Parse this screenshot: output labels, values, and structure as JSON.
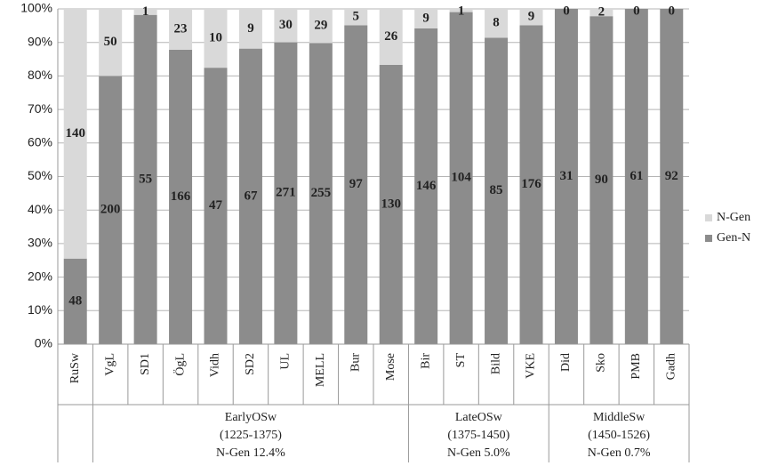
{
  "chart_data": {
    "type": "percent_stacked_bar",
    "categories": [
      "RuSw",
      "VgL",
      "SD1",
      "ÖgL",
      "Vidh",
      "SD2",
      "UL",
      "MELL",
      "Bur",
      "Mose",
      "Bir",
      "ST",
      "Bild",
      "VKE",
      "Did",
      "Sko",
      "PMB",
      "Gadh"
    ],
    "series": [
      {
        "name": "Gen-N",
        "color": "#8c8c8c",
        "values": [
          48,
          200,
          55,
          166,
          47,
          67,
          271,
          255,
          97,
          130,
          146,
          104,
          85,
          176,
          31,
          90,
          61,
          92
        ]
      },
      {
        "name": "N-Gen",
        "color": "#d9d9d9",
        "values": [
          140,
          50,
          1,
          23,
          10,
          9,
          30,
          29,
          5,
          26,
          9,
          1,
          8,
          9,
          0,
          2,
          0,
          0
        ]
      }
    ],
    "groups": [
      {
        "lines": [
          "EarlyOSw",
          "(1225-1375)",
          "N-Gen 12.4%"
        ],
        "members": [
          "VgL",
          "SD1",
          "ÖgL",
          "Vidh",
          "SD2",
          "UL",
          "MELL",
          "Bur",
          "Mose"
        ]
      },
      {
        "lines": [
          "LateOSw",
          "(1375-1450)",
          "N-Gen 5.0%"
        ],
        "members": [
          "Bir",
          "ST",
          "Bild",
          "VKE"
        ]
      },
      {
        "lines": [
          "MiddleSw",
          "(1450-1526)",
          "N-Gen 0.7%"
        ],
        "members": [
          "Did",
          "Sko",
          "PMB",
          "Gadh"
        ]
      }
    ],
    "ylim": [
      0,
      100
    ],
    "yticks": [
      {
        "value": 0,
        "label": "0%"
      },
      {
        "value": 10,
        "label": "10%"
      },
      {
        "value": 20,
        "label": "20%"
      },
      {
        "value": 30,
        "label": "30%"
      },
      {
        "value": 40,
        "label": "40%"
      },
      {
        "value": 50,
        "label": "50%"
      },
      {
        "value": 60,
        "label": "60%"
      },
      {
        "value": 70,
        "label": "70%"
      },
      {
        "value": 80,
        "label": "80%"
      },
      {
        "value": 90,
        "label": "90%"
      },
      {
        "value": 100,
        "label": "100%"
      }
    ],
    "grid": true,
    "legend": "right"
  }
}
